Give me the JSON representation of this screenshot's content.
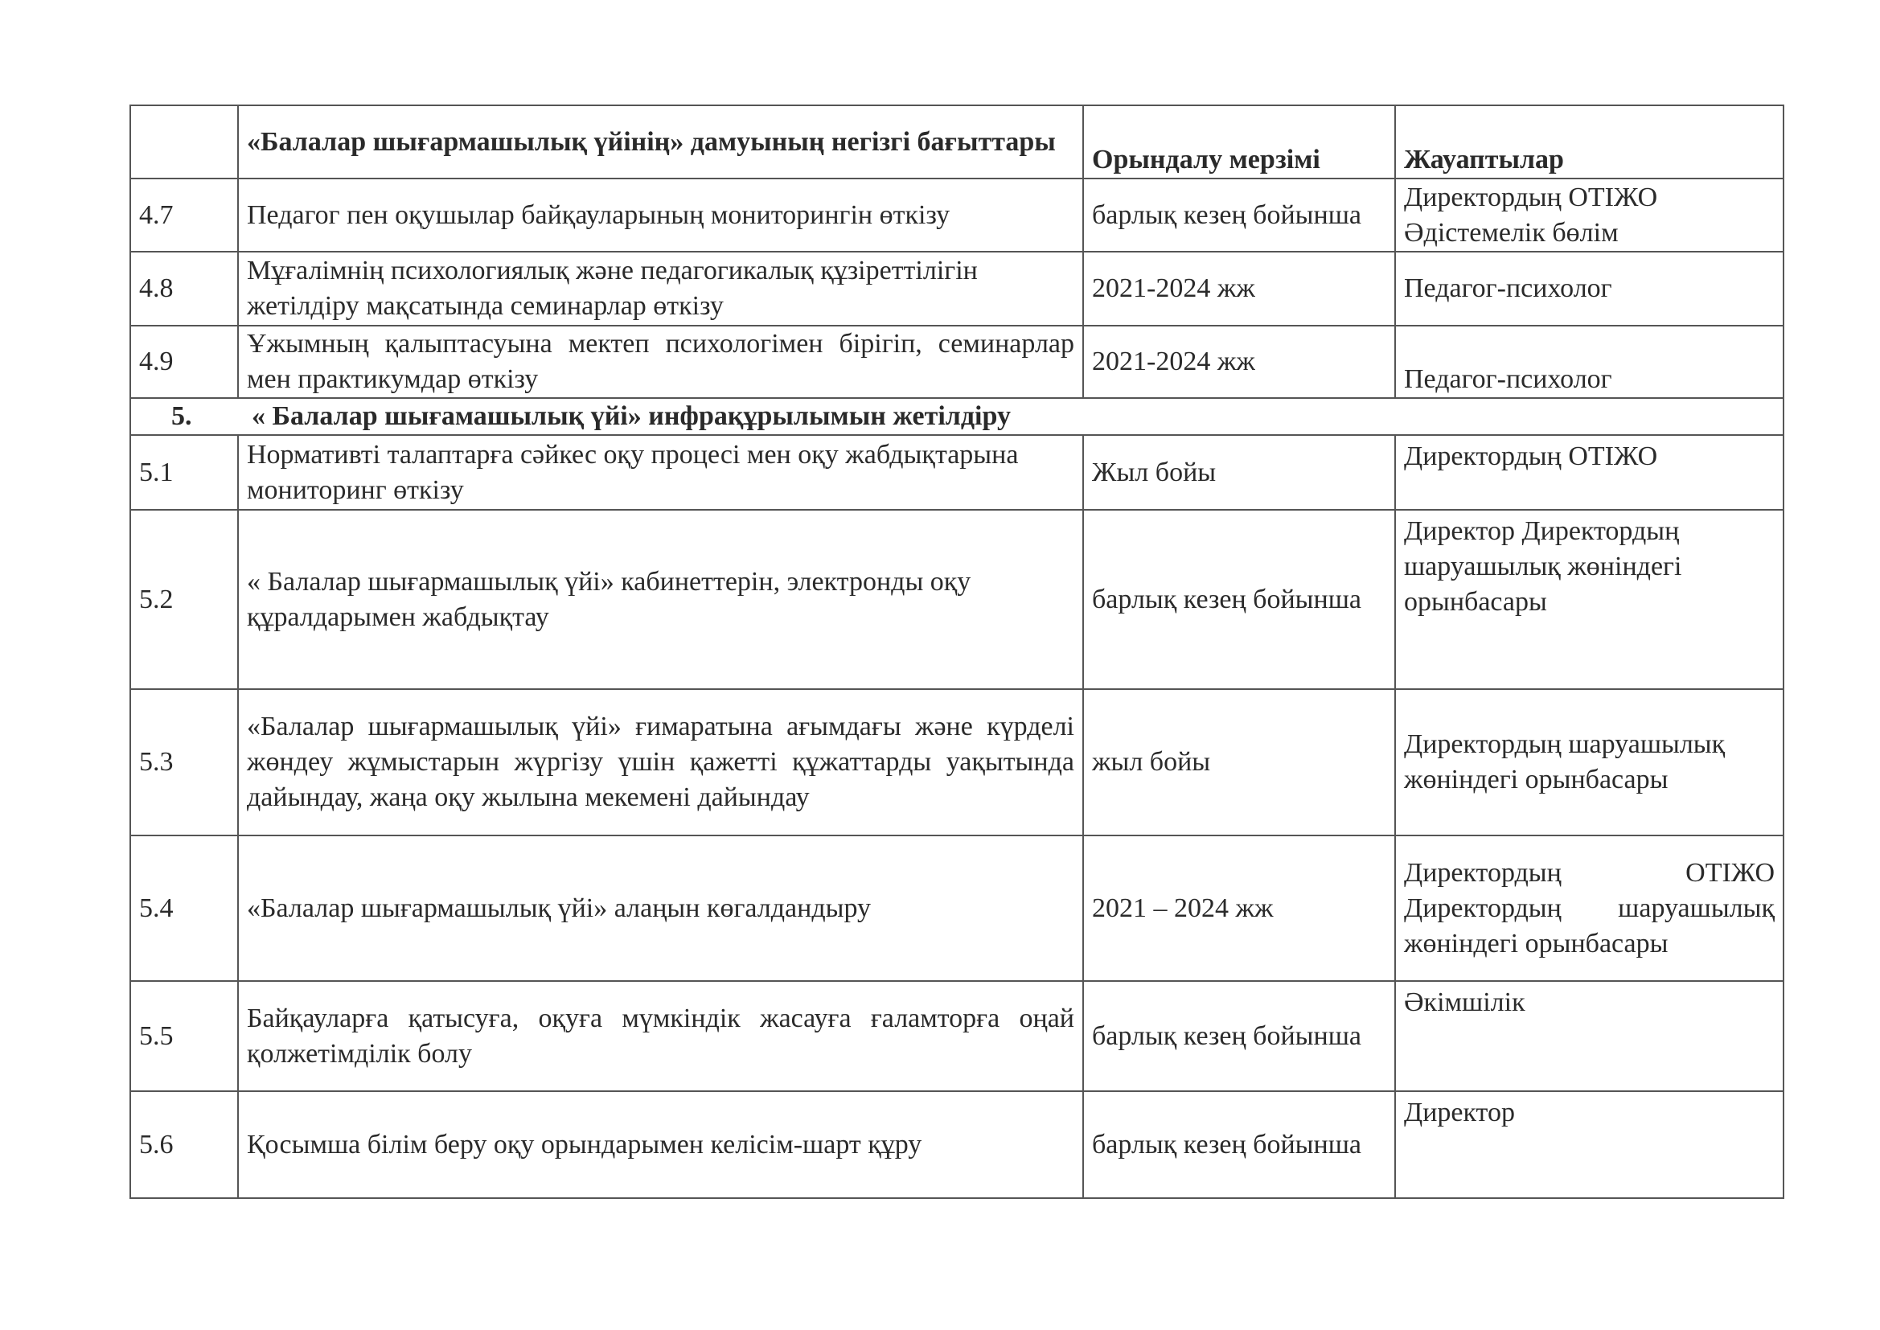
{
  "table": {
    "header": {
      "num": "",
      "direction": "«Балалар шығармашылық үйінің»    дамуының  негізгі бағыттары",
      "deadline": "Орындалу мерзімі",
      "responsible": "Жауаптылар"
    },
    "rows_a": [
      {
        "num": "4.7",
        "direction": "Педагог пен оқушылар байқауларының  мониторингін өткізу",
        "deadline": "барлық кезең бойынша",
        "responsible": "Директордың ОТІЖО Әдістемелік бөлім"
      },
      {
        "num": "4.8",
        "direction": "Мұғалімнің психологиялық  және  педагогикалық құзіреттілігін  жетілдіру мақсатында семинарлар өткізу",
        "deadline": "2021-2024 жж",
        "responsible": "Педагог-психолог"
      },
      {
        "num": "4.9",
        "direction": "Ұжымның  қалыптасуына  мектеп  психологімен  бірігіп, семинарлар мен практикумдар өткізу",
        "deadline": "2021-2024 жж",
        "responsible": "Педагог-психолог"
      }
    ],
    "section": {
      "num": "5.",
      "title": "« Балалар шығамашылық үйі»  инфрақұрылымын  жетілдіру"
    },
    "rows_b": [
      {
        "num": "5.1",
        "direction": "Нормативті  талаптарға сәйкес оқу процесі мен оқу жабдықтарына мониторинг өткізу",
        "deadline": "Жыл бойы",
        "responsible": "Директордың ОТІЖО"
      },
      {
        "num": "5.2",
        "direction": "« Балалар шығармашылық үйі»    кабинеттерін, электронды оқу құралдарымен жабдықтау",
        "deadline": "барлық кезең бойынша",
        "responsible": "Директор Директордың шаруашылық жөніндегі орынбасары"
      },
      {
        "num": "5.3",
        "direction": "«Балалар  шығармашылық  үйі»        ғимаратына  ағымдағы  және  күрделі  жөндеу  жұмыстарын  жүргізу  үшін  қажетті  құжаттарды  уақытында  дайындау,  жаңа  оқу  жылына мекемені  дайындау",
        "deadline": "жыл бойы",
        "responsible": "Директордың шаруашылық жөніндегі орынбасары"
      },
      {
        "num": "5.4",
        "direction": "«Балалар шығармашылық үйі»      алаңын көгалдандыру",
        "deadline": "2021 – 2024 жж",
        "responsible": "Директордың  ОТІЖО Директордың шаруашылық жөніндегі орынбасары"
      },
      {
        "num": "5.5",
        "direction": "Байқауларға  қатысуға,  оқуға  мүмкіндік  жасауға  ғаламторға оңай қолжетімділік болу",
        "deadline": "барлық кезең бойынша",
        "responsible": "Әкімшілік"
      },
      {
        "num": "5.6",
        "direction": "Қосымша білім беру оқу орындарымен келісім-шарт құру",
        "deadline": "барлық кезең бойынша",
        "responsible": "Директор"
      }
    ]
  }
}
